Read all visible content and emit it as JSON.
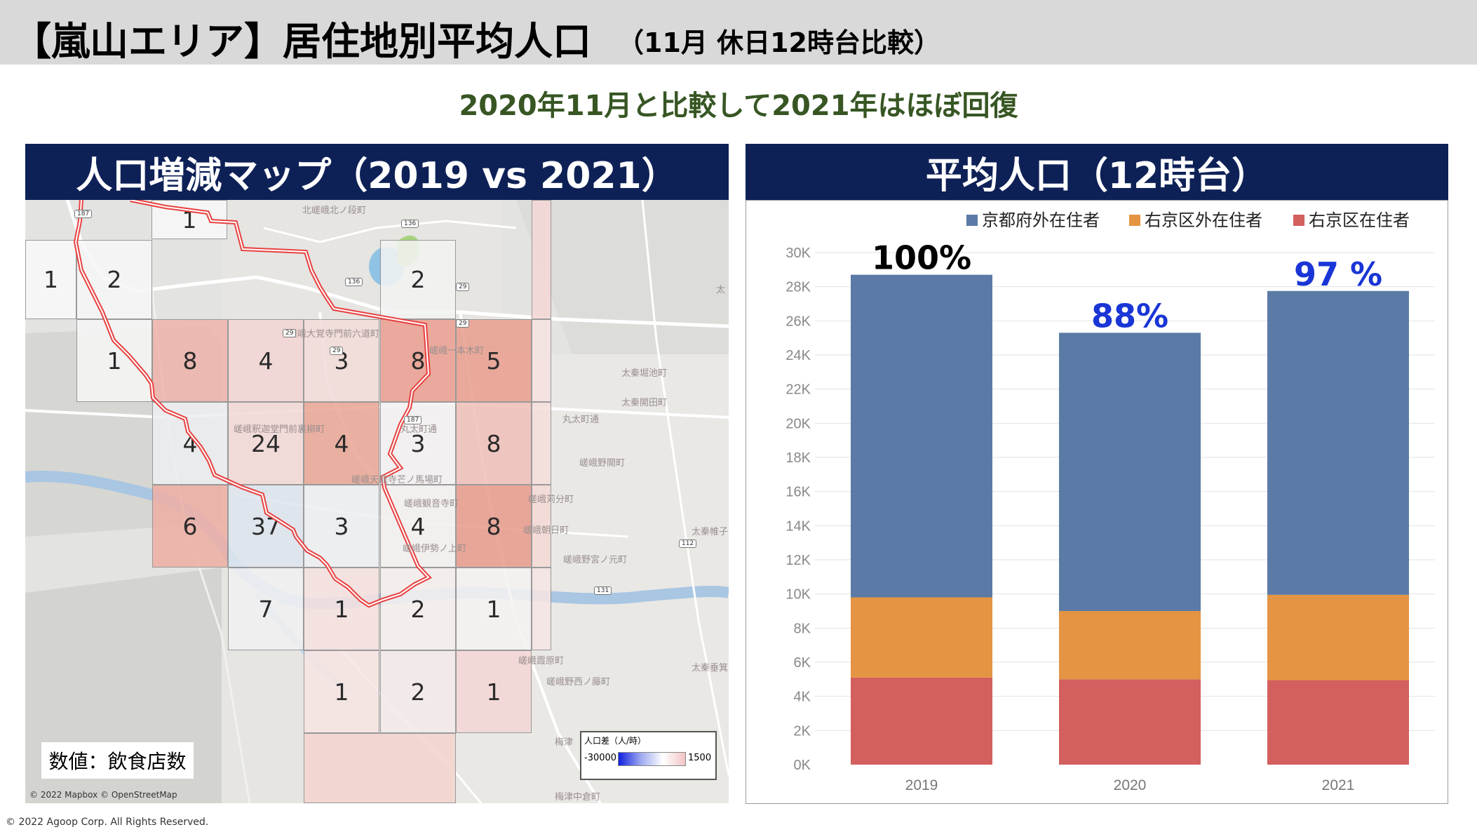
{
  "header": {
    "title": "【嵐山エリア】居住地別平均人口",
    "subtitle": "（11月 休日12時台比較）"
  },
  "summary": "2020年11月と比較して2021年はほぼ回復",
  "map_panel": {
    "title": "人口増減マップ（2019 vs 2021）",
    "note": "数値：飲食店数",
    "legend_title": "人口差（人/時）",
    "legend_min": "-30000",
    "legend_max": "1500",
    "credit": "© 2022 Mapbox © OpenStreetMap",
    "place_labels": [
      "北嵯峨北ノ段町",
      "嵯峨大覚寺門前六道町",
      "嵯峨一本木町",
      "太秦堀池町",
      "太秦開田町",
      "丸太町通",
      "嵯峨釈迦堂門前裏柳町",
      "丸太町通",
      "嵯峨野開町",
      "嵯峨天龍寺芒ノ馬場町",
      "嵯峨観音寺町",
      "嵯峨苅分町",
      "嵯峨朝日町",
      "嵯峨伊勢ノ上町",
      "嵯峨野宮ノ元町",
      "太秦帷子ノ辻町",
      "嵯峨霞原町",
      "嵯峨野西ノ藤町",
      "太秦垂箕山町",
      "梅津中倉町",
      "梅津",
      "太"
    ],
    "road_numbers": [
      "187",
      "136",
      "136",
      "29",
      "29",
      "29",
      "187",
      "29",
      "112",
      "131"
    ],
    "cells": [
      {
        "value": "1",
        "color": "#f8f8f8"
      },
      {
        "value": "1",
        "color": "#f9f9f9"
      },
      {
        "value": "2",
        "color": "#f7f7f7"
      },
      {
        "value": "2",
        "color": "#f3f3f3"
      },
      {
        "value": "1",
        "color": "#f6f6f6"
      },
      {
        "value": "8",
        "color": "#efb6ae"
      },
      {
        "value": "4",
        "color": "#f3d6d4"
      },
      {
        "value": "3",
        "color": "#f3dcda"
      },
      {
        "value": "8",
        "color": "#eba193"
      },
      {
        "value": "5",
        "color": "#e9a090"
      },
      {
        "value": "4",
        "color": "#eceef0"
      },
      {
        "value": "24",
        "color": "#f3dad8"
      },
      {
        "value": "4",
        "color": "#eaa898"
      },
      {
        "value": "3",
        "color": "#f4f2f2"
      },
      {
        "value": "8",
        "color": "#f0c2ba"
      },
      {
        "value": "6",
        "color": "#eeb0a6"
      },
      {
        "value": "37",
        "color": "#dfe6ee"
      },
      {
        "value": "3",
        "color": "#eef0f3"
      },
      {
        "value": "4",
        "color": "#f4f1f1"
      },
      {
        "value": "8",
        "color": "#e89e8f"
      },
      {
        "value": "7",
        "color": "#f1f1f1"
      },
      {
        "value": "1",
        "color": "#f6e2e0"
      },
      {
        "value": "2",
        "color": "#f5efee"
      },
      {
        "value": "1",
        "color": "#f5f2f2"
      },
      {
        "value": "1",
        "color": "#f6e6e4"
      },
      {
        "value": "2",
        "color": "#f4eaea"
      },
      {
        "value": "1",
        "color": "#f4d8d6"
      },
      {
        "value": "",
        "color": "#f5d8d6"
      },
      {
        "value": "",
        "color": "#f6e3e1"
      },
      {
        "value": "",
        "color": "#f5dfdc"
      },
      {
        "value": "",
        "color": "#f5dad6"
      },
      {
        "value": "",
        "color": "#f6e6e4"
      },
      {
        "value": "",
        "color": "#f3d4d0"
      }
    ]
  },
  "chart_panel": {
    "title": "平均人口（12時台）"
  },
  "chart_data": {
    "type": "bar",
    "stacked": true,
    "categories": [
      "2019",
      "2020",
      "2021"
    ],
    "series": [
      {
        "name": "右京区在住者",
        "color": "#d35f5f",
        "values": [
          5100,
          5000,
          4950
        ]
      },
      {
        "name": "右京区外在住者",
        "color": "#e49443",
        "values": [
          4700,
          4000,
          5000
        ]
      },
      {
        "name": "京都府外在住者",
        "color": "#5b7ba6",
        "values": [
          18900,
          16300,
          17800
        ]
      }
    ],
    "annotations": [
      "100%",
      "88%",
      "97 %"
    ],
    "annotation_colors": [
      "#000000",
      "#1a35d6",
      "#1a35d6"
    ],
    "yticks": [
      "0K",
      "2K",
      "4K",
      "6K",
      "8K",
      "10K",
      "12K",
      "14K",
      "16K",
      "18K",
      "20K",
      "22K",
      "24K",
      "26K",
      "28K",
      "30K"
    ],
    "ylim": [
      0,
      30000
    ],
    "legend_position": "top-right",
    "grid": true
  },
  "copyright": "© 2022 Agoop Corp. All Rights Reserved."
}
